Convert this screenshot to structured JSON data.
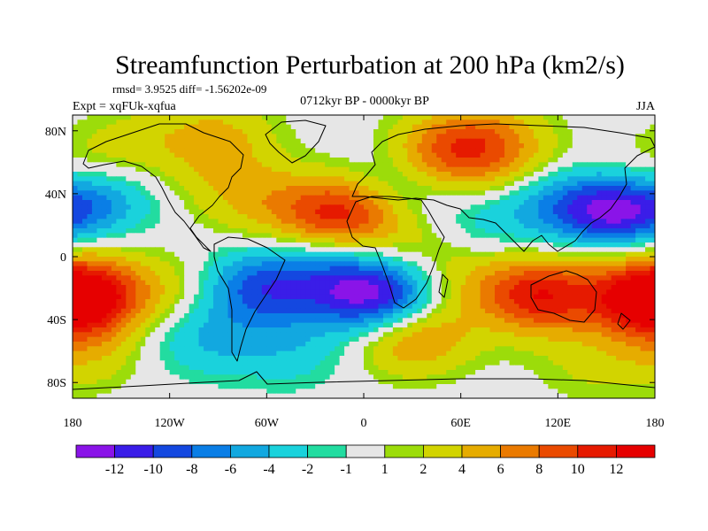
{
  "chart_data": {
    "type": "heatmap",
    "title": "Streamfunction Perturbation at 200 hPa (km2/s)",
    "stats_text": "rmsd= 3.9525 diff= -1.56202e-09",
    "left_label": "Expt = xqFUk-xqfua",
    "center_label": "0712kyr BP - 0000kyr BP",
    "right_label": "JJA",
    "projection": "cylindrical equidistant",
    "xlim": [
      -180,
      180
    ],
    "ylim": [
      -90,
      90
    ],
    "x_ticks": [
      {
        "value": -180,
        "label": "180"
      },
      {
        "value": -120,
        "label": "120W"
      },
      {
        "value": -60,
        "label": "60W"
      },
      {
        "value": 0,
        "label": "0"
      },
      {
        "value": 60,
        "label": "60E"
      },
      {
        "value": 120,
        "label": "120E"
      },
      {
        "value": 180,
        "label": "180"
      }
    ],
    "y_ticks": [
      {
        "value": 80,
        "label": "80N"
      },
      {
        "value": 40,
        "label": "40N"
      },
      {
        "value": 0,
        "label": "0"
      },
      {
        "value": -40,
        "label": "40S"
      },
      {
        "value": -80,
        "label": "80S"
      }
    ],
    "colorbar": {
      "levels": [
        "-12",
        "-10",
        "-8",
        "-6",
        "-4",
        "-2",
        "-1",
        "1",
        "2",
        "4",
        "6",
        "8",
        "10",
        "12"
      ],
      "colors": [
        "#8a14e8",
        "#3a1de8",
        "#1448e0",
        "#0a7ee6",
        "#12a8e0",
        "#1ad2dc",
        "#22dca0",
        "#e6e6e6",
        "#9cdc0a",
        "#d2d400",
        "#e6ac00",
        "#ea7a00",
        "#ea4a00",
        "#e61a00",
        "#e60000"
      ]
    },
    "features": [
      {
        "lon": -14,
        "lat": 28,
        "value": 10.5
      },
      {
        "lon": -60,
        "lat": 32,
        "value": 3.0
      },
      {
        "lon": 50,
        "lat": 65,
        "value": 7.0
      },
      {
        "lon": 75,
        "lat": 75,
        "value": 5.0
      },
      {
        "lon": -140,
        "lat": 72,
        "value": 2.5
      },
      {
        "lon": -90,
        "lat": 77,
        "value": 4.0
      },
      {
        "lon": 155,
        "lat": 27,
        "value": -12.5
      },
      {
        "lon": 115,
        "lat": 35,
        "value": -5.0
      },
      {
        "lon": -165,
        "lat": 35,
        "value": -6.0
      },
      {
        "lon": -180,
        "lat": 52,
        "value": 3.0
      },
      {
        "lon": 20,
        "lat": 48,
        "value": -3.0
      },
      {
        "lon": 65,
        "lat": 18,
        "value": -3.0
      },
      {
        "lon": -175,
        "lat": 8,
        "value": 1.5
      },
      {
        "lon": 35,
        "lat": 8,
        "value": 3.0
      },
      {
        "lon": 150,
        "lat": 8,
        "value": 2.0
      },
      {
        "lon": -172,
        "lat": -25,
        "value": 9.0
      },
      {
        "lon": -120,
        "lat": -22,
        "value": 3.0
      },
      {
        "lon": -65,
        "lat": -20,
        "value": -8.5
      },
      {
        "lon": -20,
        "lat": -14,
        "value": -5.0
      },
      {
        "lon": 10,
        "lat": -26,
        "value": -12.0
      },
      {
        "lon": 110,
        "lat": -25,
        "value": 11.0
      },
      {
        "lon": 175,
        "lat": -28,
        "value": 9.0
      },
      {
        "lon": 65,
        "lat": -15,
        "value": 3.0
      },
      {
        "lon": 30,
        "lat": -50,
        "value": 7.5
      },
      {
        "lon": -100,
        "lat": -52,
        "value": -4.0
      },
      {
        "lon": -45,
        "lat": -60,
        "value": -3.0
      },
      {
        "lon": -170,
        "lat": -62,
        "value": 3.0
      },
      {
        "lon": 140,
        "lat": -70,
        "value": 2.0
      },
      {
        "lon": -85,
        "lat": 48,
        "value": 2.5
      },
      {
        "lon": 95,
        "lat": 55,
        "value": 3.0
      }
    ]
  }
}
